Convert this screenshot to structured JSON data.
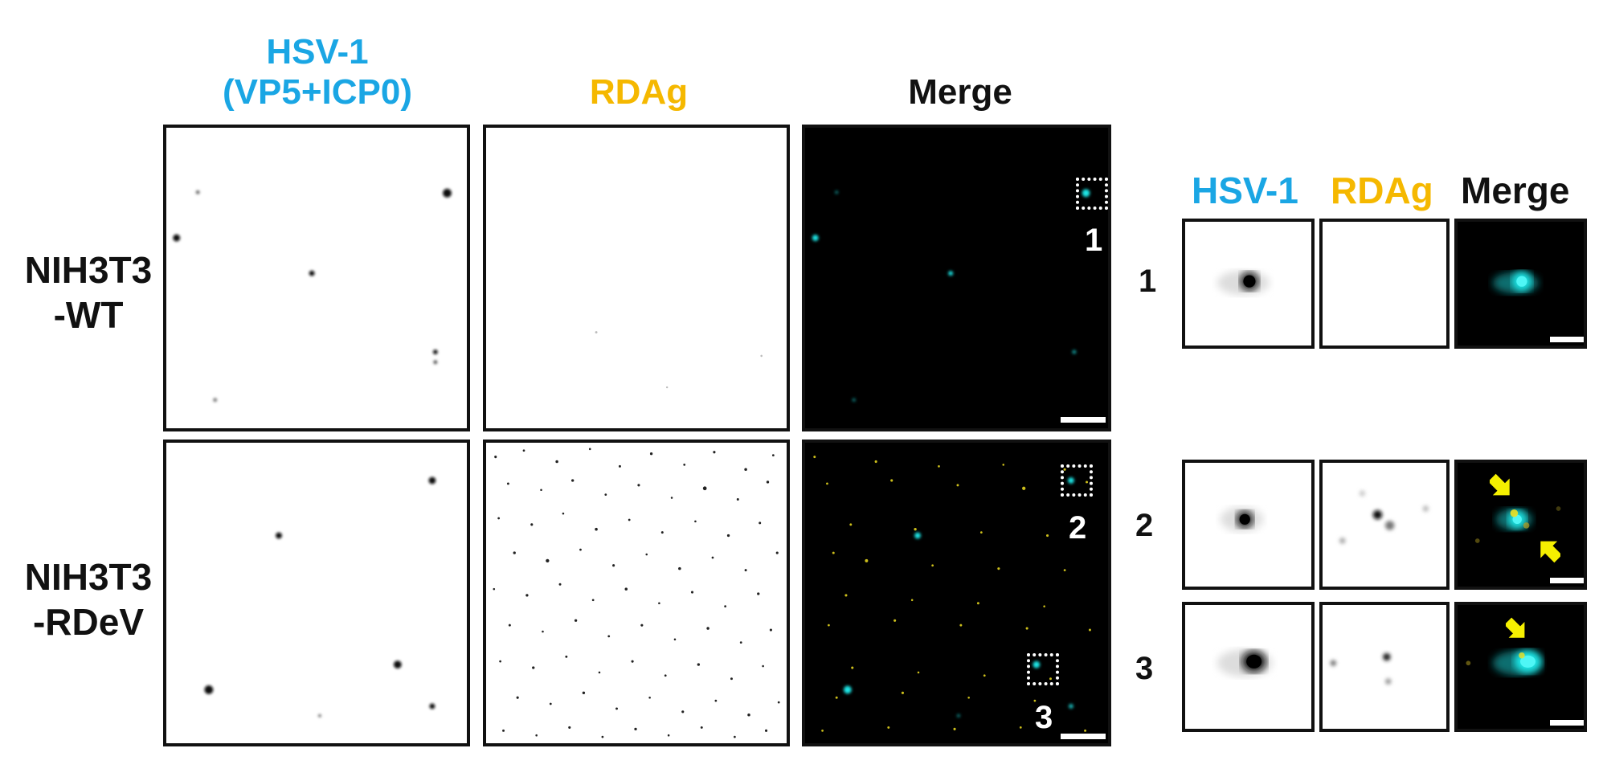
{
  "colors": {
    "hsv1": "#1aa6e4",
    "rdag": "#f5b800",
    "merge": "#111111",
    "cyan_signal": "#1ee8e8",
    "yellow_signal": "#f0e020",
    "arrow": "#f5f000"
  },
  "columns": {
    "hsv1_line1": "HSV-1",
    "hsv1_line2": "(VP5+ICP0)",
    "rdag": "RDAg",
    "merge": "Merge"
  },
  "rows": {
    "wt_line1": "NIH3T3",
    "wt_line2": "-WT",
    "rdev_line1": "NIH3T3",
    "rdev_line2": "-RDeV"
  },
  "inset_headers": {
    "hsv1": "HSV-1",
    "rdag": "RDAg",
    "merge": "Merge"
  },
  "roi_labels": [
    "1",
    "2",
    "3"
  ],
  "icons": [
    "arrow-icon"
  ]
}
